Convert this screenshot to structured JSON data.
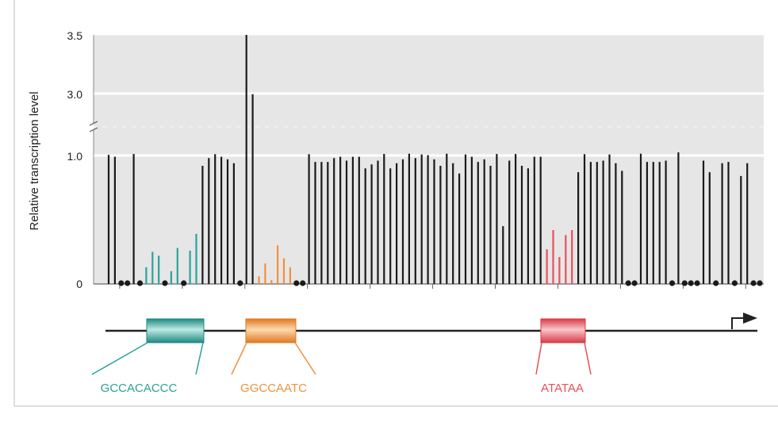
{
  "chart_data": {
    "type": "bar",
    "title": "",
    "xlabel": "",
    "ylabel": "Relative transcription level",
    "y_ticks": [
      "0",
      "1.0",
      "3.0",
      "3.5"
    ],
    "y_axis": "broken between 1.0 and 3.0",
    "grid": true,
    "zero_marker": "filled circle",
    "values": [
      1.02,
      0.99,
      0,
      0,
      1.05,
      0,
      0.13,
      0.25,
      0.22,
      0,
      0.1,
      0.28,
      0,
      0.26,
      0.39,
      0.92,
      0.98,
      1.04,
      0.99,
      0.97,
      0.94,
      0,
      3.5,
      2.98,
      0.06,
      0.16,
      0.03,
      0.3,
      0.2,
      0.13,
      0,
      0,
      1.04,
      0.95,
      0.95,
      0.95,
      0.98,
      0.99,
      0.96,
      0.99,
      0.99,
      0.9,
      0.93,
      0.96,
      1.05,
      0.9,
      0.94,
      0.97,
      1.06,
      0.98,
      1.03,
      1.01,
      0.97,
      0.92,
      1.06,
      0.94,
      0.86,
      1.03,
      0.99,
      0.95,
      0.97,
      0.92,
      1.05,
      0.45,
      0.96,
      1.05,
      0.92,
      0.9,
      0.99,
      0.99,
      0.27,
      0.42,
      0.21,
      0.38,
      0.42,
      0.87,
      1.04,
      0.95,
      0.95,
      0.96,
      1.03,
      0.94,
      0.88,
      0,
      0,
      1.06,
      0.95,
      0.95,
      0.95,
      0.96,
      0,
      1.1,
      0,
      0,
      0,
      0.96,
      0.87,
      0,
      0.94,
      0.95,
      0,
      0.84,
      0.94,
      0,
      0
    ],
    "groups": [
      {
        "name": "GCCACACCC",
        "color": "#2aa39a",
        "start": 6,
        "end": 14
      },
      {
        "name": "GGCCAATC",
        "color": "#f0913c",
        "start": 24,
        "end": 29
      },
      {
        "name": "ATATAA",
        "color": "#e8505b",
        "start": 70,
        "end": 74
      }
    ]
  },
  "diagram": {
    "elements": [
      {
        "label": "GCCACACCC",
        "color": "#2aa39a"
      },
      {
        "label": "GGCCAATC",
        "color": "#f0913c"
      },
      {
        "label": "ATATAA",
        "color": "#e8505b"
      }
    ],
    "transcription_start": "arrow"
  },
  "colors": {
    "bar": "#1a1a1a",
    "plot_background": "#e6e6e6",
    "gridline": "#ffffff"
  }
}
